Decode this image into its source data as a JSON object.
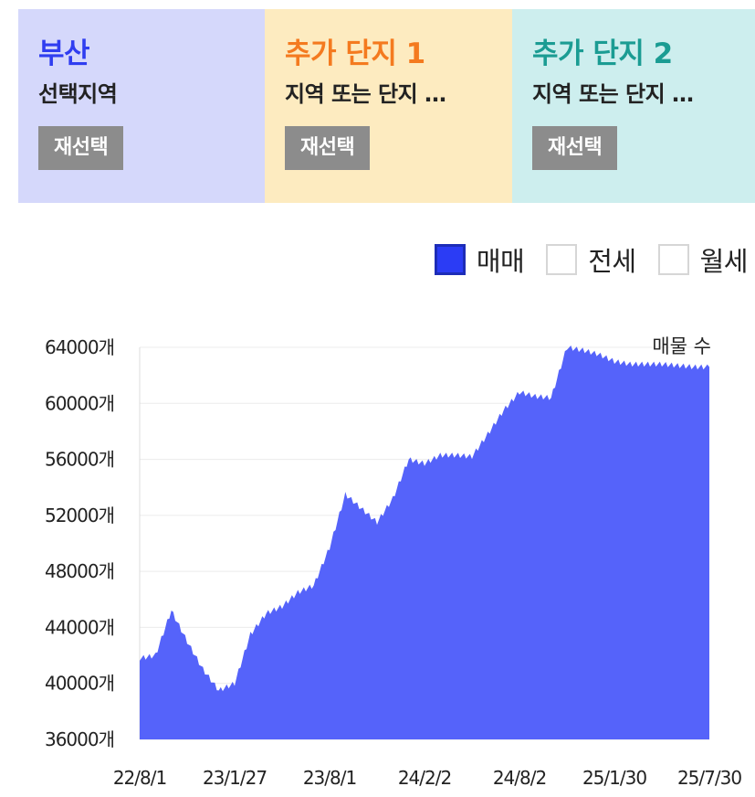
{
  "panels": [
    {
      "title": "부산",
      "subtitle": "선택지역",
      "button": "재선택",
      "title_color": "#2f3df0"
    },
    {
      "title": "추가 단지 1",
      "subtitle": "지역 또는 단지 …",
      "button": "재선택",
      "title_color": "#f47a1f"
    },
    {
      "title": "추가 단지 2",
      "subtitle": "지역 또는 단지 …",
      "button": "재선택",
      "title_color": "#1b9c93"
    }
  ],
  "legend": [
    {
      "label": "매매",
      "checked": true
    },
    {
      "label": "전세",
      "checked": false
    },
    {
      "label": "월세",
      "checked": false
    }
  ],
  "chart_data": {
    "type": "area",
    "series": [
      {
        "name": "매물 수",
        "color": "#5563fa"
      }
    ],
    "x": [
      "22/8/1",
      "22/9/1",
      "22/10/1",
      "22/11/1",
      "22/12/1",
      "23/1/1",
      "23/1/27",
      "23/3/1",
      "23/4/1",
      "23/5/1",
      "23/6/1",
      "23/7/1",
      "23/8/1",
      "23/9/1",
      "23/10/1",
      "23/11/1",
      "23/12/1",
      "24/1/1",
      "24/2/2",
      "24/3/1",
      "24/4/1",
      "24/5/1",
      "24/6/1",
      "24/7/1",
      "24/8/2",
      "24/9/1",
      "24/10/1",
      "24/11/1",
      "24/12/1",
      "25/1/1",
      "25/1/30",
      "25/3/1",
      "25/4/1",
      "25/5/1",
      "25/6/1",
      "25/7/1",
      "25/7/30"
    ],
    "values": [
      41800,
      42000,
      45200,
      43000,
      41000,
      39500,
      40000,
      43500,
      45000,
      45500,
      46500,
      47000,
      49700,
      53500,
      52500,
      51500,
      53200,
      56000,
      55700,
      56300,
      56300,
      56200,
      57800,
      59500,
      60800,
      60500,
      60400,
      64000,
      63800,
      63500,
      63000,
      62800,
      62800,
      62800,
      62700,
      62600,
      62600
    ],
    "x_ticks": [
      "22/8/1",
      "23/1/27",
      "23/8/1",
      "24/2/2",
      "24/8/2",
      "25/1/30",
      "25/7/30"
    ],
    "y_ticks": [
      "36000개",
      "40000개",
      "44000개",
      "48000개",
      "52000개",
      "56000개",
      "60000개",
      "64000개"
    ],
    "ylim": [
      36000,
      64000
    ],
    "grid": true
  }
}
